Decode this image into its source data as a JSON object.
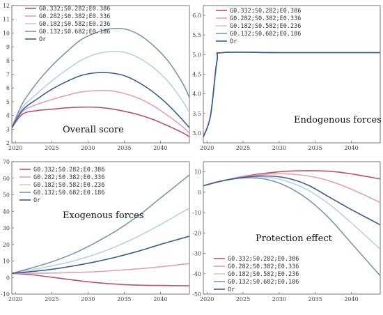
{
  "series_meta": [
    {
      "name": "G0.332;S0.282;E0.386",
      "color": "#b5546c"
    },
    {
      "name": "G0.282;S0.382;E0.336",
      "color": "#e3a2b4"
    },
    {
      "name": "G0.182;S0.582;E0.236",
      "color": "#b9d0ec"
    },
    {
      "name": "G0.132;S0.682;E0.186",
      "color": "#7d96aa"
    },
    {
      "name": "Or",
      "color": "#3d5b8f"
    }
  ],
  "chart_data": [
    {
      "type": "line",
      "title": "Overall score",
      "xlabel": "",
      "ylabel": "",
      "xlim": [
        2019.5,
        2044
      ],
      "ylim": [
        2,
        12
      ],
      "xticks": [
        2020,
        2025,
        2030,
        2035,
        2040
      ],
      "yticks": [
        2,
        3,
        4,
        5,
        6,
        7,
        8,
        9,
        10,
        11,
        12
      ],
      "legend_position": "top-left",
      "x": [
        2019.5,
        2021,
        2023,
        2025,
        2027,
        2029,
        2031,
        2033,
        2035,
        2037,
        2039,
        2041,
        2043,
        2044
      ],
      "series": [
        {
          "name": "G0.332;S0.282;E0.386",
          "values": [
            3.1,
            4.1,
            4.35,
            4.45,
            4.55,
            4.6,
            4.6,
            4.5,
            4.3,
            4.05,
            3.7,
            3.25,
            2.75,
            2.45
          ]
        },
        {
          "name": "G0.282;S0.382;E0.336",
          "values": [
            3.1,
            4.3,
            4.8,
            5.15,
            5.45,
            5.7,
            5.8,
            5.8,
            5.6,
            5.25,
            4.7,
            4.0,
            3.2,
            2.7
          ]
        },
        {
          "name": "G0.182;S0.582;E0.236",
          "values": [
            3.1,
            4.6,
            5.6,
            6.5,
            7.3,
            8.0,
            8.45,
            8.65,
            8.6,
            8.2,
            7.5,
            6.5,
            5.1,
            4.2
          ]
        },
        {
          "name": "G0.132;S0.682;E0.186",
          "values": [
            3.1,
            4.9,
            6.4,
            7.6,
            8.6,
            9.5,
            10.0,
            10.3,
            10.3,
            9.9,
            9.1,
            8.0,
            6.4,
            5.3
          ]
        },
        {
          "name": "Or",
          "values": [
            3.1,
            4.4,
            5.2,
            5.9,
            6.45,
            6.9,
            7.1,
            7.1,
            6.9,
            6.4,
            5.7,
            4.8,
            3.7,
            3.1
          ]
        }
      ]
    },
    {
      "type": "line",
      "title": "Endogenous forces",
      "xlabel": "",
      "ylabel": "",
      "xlim": [
        2019.5,
        2044
      ],
      "ylim": [
        2.75,
        6.25
      ],
      "xticks": [
        2020,
        2025,
        2030,
        2035,
        2040
      ],
      "yticks": [
        3.0,
        3.5,
        4.0,
        4.5,
        5.0,
        5.5,
        6.0
      ],
      "ytick_labels": [
        "3.0",
        "3.5",
        "4.0",
        "4.5",
        "5.0",
        "5.5",
        "6.0"
      ],
      "legend_position": "top-left",
      "x": [
        2019.5,
        2020.5,
        2021.4,
        2022.2,
        2030,
        2044
      ],
      "series": [
        {
          "name": "G0.332;S0.282;E0.386",
          "values": [
            2.9,
            3.45,
            4.85,
            5.05,
            5.05,
            5.05
          ]
        },
        {
          "name": "G0.282;S0.382;E0.336",
          "values": [
            2.9,
            3.45,
            4.85,
            5.05,
            5.05,
            5.05
          ]
        },
        {
          "name": "G0.182;S0.582;E0.236",
          "values": [
            2.9,
            3.45,
            4.85,
            5.05,
            5.05,
            5.05
          ]
        },
        {
          "name": "G0.132;S0.682;E0.186",
          "values": [
            2.9,
            3.45,
            4.85,
            5.05,
            5.05,
            5.05
          ]
        },
        {
          "name": "Or",
          "values": [
            2.9,
            3.45,
            4.85,
            5.05,
            5.05,
            5.05
          ]
        }
      ]
    },
    {
      "type": "line",
      "title": "Exogenous forces",
      "xlabel": "",
      "ylabel": "",
      "xlim": [
        2019.5,
        2044
      ],
      "ylim": [
        -10,
        70
      ],
      "xticks": [
        2020,
        2025,
        2030,
        2035,
        2040
      ],
      "yticks": [
        -10,
        0,
        10,
        20,
        30,
        40,
        50,
        60,
        70
      ],
      "legend_position": "top-left",
      "x": [
        2019.5,
        2022,
        2025,
        2028,
        2031,
        2034,
        2037,
        2040,
        2044
      ],
      "series": [
        {
          "name": "G0.332;S0.282;E0.386",
          "values": [
            2.5,
            1.8,
            0.2,
            -1.5,
            -3.0,
            -4.0,
            -4.6,
            -4.8,
            -5.0
          ]
        },
        {
          "name": "G0.282;S0.382;E0.336",
          "values": [
            2.5,
            2.6,
            2.7,
            3.0,
            3.5,
            4.3,
            5.3,
            6.5,
            8.5
          ]
        },
        {
          "name": "G0.182;S0.582;E0.236",
          "values": [
            2.5,
            4.5,
            7.0,
            10.0,
            14.0,
            19.0,
            25.0,
            32.0,
            42.0
          ]
        },
        {
          "name": "G0.132;S0.682;E0.186",
          "values": [
            2.5,
            5.5,
            9.5,
            14.5,
            21.0,
            28.5,
            37.5,
            48.0,
            62.0
          ]
        },
        {
          "name": "Or",
          "values": [
            2.5,
            3.5,
            5.0,
            7.0,
            9.5,
            12.5,
            16.0,
            20.0,
            25.0
          ]
        }
      ]
    },
    {
      "type": "line",
      "title": "Protection effect",
      "xlabel": "",
      "ylabel": "",
      "xlim": [
        2019.5,
        2044
      ],
      "ylim": [
        -50,
        15
      ],
      "xticks": [
        2020,
        2025,
        2030,
        2035,
        2040
      ],
      "xtick_labels": [
        "2020",
        "2025",
        "2030",
        "2035",
        "2040"
      ],
      "yticks": [
        -50,
        -40,
        -30,
        -20,
        -10,
        0,
        10
      ],
      "legend_position": "bottom-left",
      "x": [
        2019.5,
        2022,
        2025,
        2028,
        2031,
        2034,
        2037,
        2040,
        2044
      ],
      "series": [
        {
          "name": "G0.332;S0.282;E0.386",
          "values": [
            3.2,
            5.5,
            7.7,
            9.3,
            10.3,
            10.6,
            10.3,
            9.0,
            6.5
          ]
        },
        {
          "name": "G0.282;S0.382;E0.336",
          "values": [
            3.2,
            5.5,
            7.5,
            8.8,
            9.0,
            8.0,
            5.5,
            1.5,
            -5.0
          ]
        },
        {
          "name": "G0.182;S0.582;E0.236",
          "values": [
            3.2,
            5.5,
            7.2,
            7.5,
            5.5,
            1.0,
            -6.0,
            -15.0,
            -28.0
          ]
        },
        {
          "name": "G0.132;S0.682;E0.186",
          "values": [
            3.2,
            5.5,
            7.0,
            6.5,
            3.0,
            -3.5,
            -13.0,
            -25.0,
            -41.0
          ]
        },
        {
          "name": "Or",
          "values": [
            3.2,
            5.5,
            7.3,
            8.0,
            7.0,
            3.5,
            -2.5,
            -8.5,
            -16.0
          ]
        }
      ]
    }
  ]
}
